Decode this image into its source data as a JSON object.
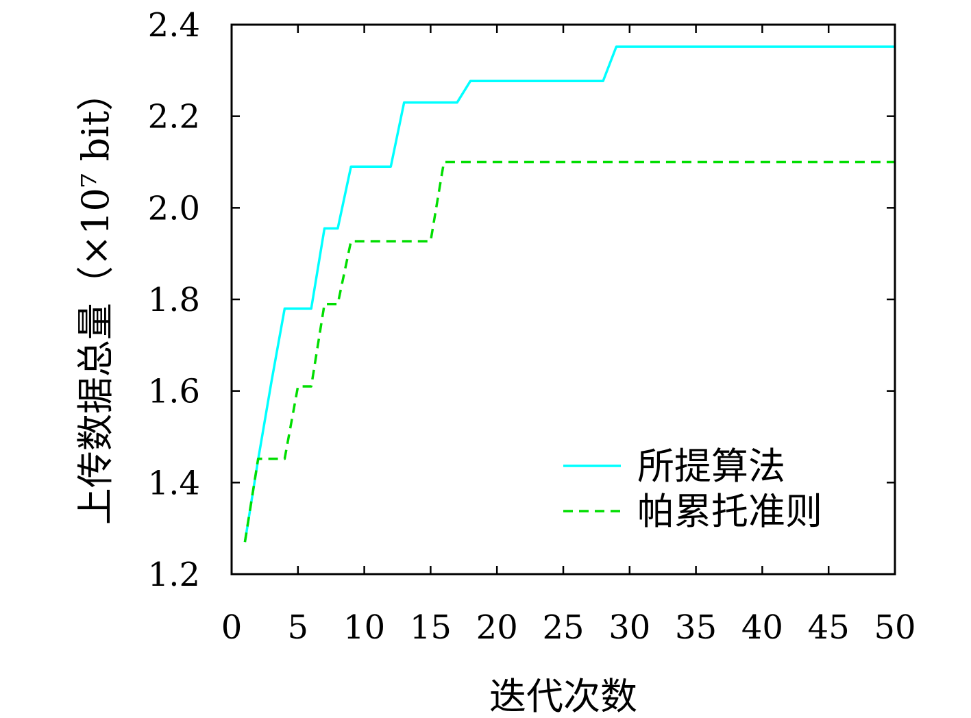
{
  "chart_data": {
    "type": "line",
    "xlabel": "迭代次数",
    "ylabel": "上传数据总量（×10⁷ bit）",
    "xlim": [
      0,
      50
    ],
    "ylim": [
      1.2,
      2.4
    ],
    "xticks": [
      "0",
      "5",
      "10",
      "15",
      "20",
      "25",
      "30",
      "35",
      "40",
      "45",
      "50"
    ],
    "yticks": [
      "1.2",
      "1.4",
      "1.6",
      "1.8",
      "2.0",
      "2.2",
      "2.4"
    ],
    "grid": false,
    "legend_position": "bottom-right",
    "series": [
      {
        "name": "所提算法",
        "color": "#00ffff",
        "style": "solid",
        "x": [
          1,
          2,
          3,
          4,
          5,
          6,
          7,
          8,
          9,
          10,
          11,
          12,
          13,
          14,
          15,
          16,
          17,
          18,
          19,
          20,
          21,
          22,
          23,
          24,
          25,
          26,
          27,
          28,
          29,
          30,
          31,
          32,
          33,
          34,
          35,
          36,
          37,
          38,
          39,
          40,
          41,
          42,
          43,
          44,
          45,
          46,
          47,
          48,
          49,
          50
        ],
        "y": [
          1.27,
          1.45,
          1.62,
          1.78,
          1.78,
          1.78,
          1.955,
          1.955,
          2.09,
          2.09,
          2.09,
          2.09,
          2.23,
          2.23,
          2.23,
          2.23,
          2.23,
          2.277,
          2.277,
          2.277,
          2.277,
          2.277,
          2.277,
          2.277,
          2.277,
          2.277,
          2.277,
          2.277,
          2.352,
          2.352,
          2.352,
          2.352,
          2.352,
          2.352,
          2.352,
          2.352,
          2.352,
          2.352,
          2.352,
          2.352,
          2.352,
          2.352,
          2.352,
          2.352,
          2.352,
          2.352,
          2.352,
          2.352,
          2.352,
          2.352
        ]
      },
      {
        "name": "帕累托准则",
        "color": "#00dd00",
        "style": "dashed",
        "x": [
          1,
          2,
          3,
          4,
          5,
          6,
          7,
          8,
          9,
          10,
          11,
          12,
          13,
          14,
          15,
          16,
          17,
          18,
          19,
          20,
          21,
          22,
          23,
          24,
          25,
          26,
          27,
          28,
          29,
          30,
          31,
          32,
          33,
          34,
          35,
          36,
          37,
          38,
          39,
          40,
          41,
          42,
          43,
          44,
          45,
          46,
          47,
          48,
          49,
          50
        ],
        "y": [
          1.27,
          1.452,
          1.452,
          1.452,
          1.61,
          1.61,
          1.79,
          1.79,
          1.927,
          1.927,
          1.927,
          1.927,
          1.927,
          1.927,
          1.927,
          2.1,
          2.1,
          2.1,
          2.1,
          2.1,
          2.1,
          2.1,
          2.1,
          2.1,
          2.1,
          2.1,
          2.1,
          2.1,
          2.1,
          2.1,
          2.1,
          2.1,
          2.1,
          2.1,
          2.1,
          2.1,
          2.1,
          2.1,
          2.1,
          2.1,
          2.1,
          2.1,
          2.1,
          2.1,
          2.1,
          2.1,
          2.1,
          2.1,
          2.1,
          2.1
        ]
      }
    ]
  }
}
